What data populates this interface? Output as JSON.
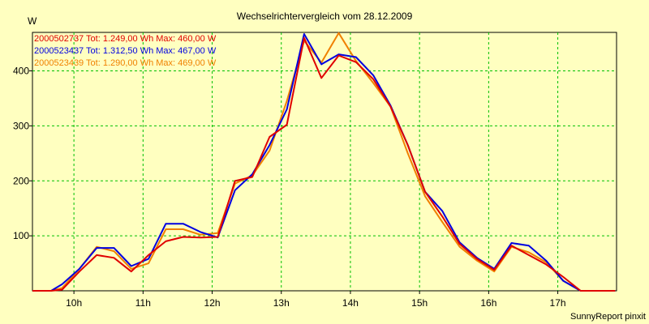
{
  "chart_data": {
    "type": "line",
    "title": "Wechselrichtervergleich vom 28.12.2009",
    "ylabel": "W",
    "xlabel": "",
    "credit": "SunnyReport pinxit",
    "xlim": [
      9.4,
      17.85
    ],
    "ylim": [
      0,
      470
    ],
    "grid": true,
    "legend_position": "top-left",
    "x_ticks": [
      {
        "value": 10,
        "label": "10h"
      },
      {
        "value": 11,
        "label": "11h"
      },
      {
        "value": 12,
        "label": "12h"
      },
      {
        "value": 13,
        "label": "13h"
      },
      {
        "value": 14,
        "label": "14h"
      },
      {
        "value": 15,
        "label": "15h"
      },
      {
        "value": 16,
        "label": "16h"
      },
      {
        "value": 17,
        "label": "17h"
      }
    ],
    "y_ticks": [
      {
        "value": 100,
        "label": "100"
      },
      {
        "value": 200,
        "label": "200"
      },
      {
        "value": 300,
        "label": "300"
      },
      {
        "value": 400,
        "label": "400"
      }
    ],
    "series": [
      {
        "name": "2000502737 Tot: 1.249,00 Wh Max: 460,00 W",
        "color": "#e00000",
        "x": [
          9.4,
          9.67,
          9.83,
          10.08,
          10.33,
          10.58,
          10.83,
          11.08,
          11.33,
          11.58,
          11.83,
          12.08,
          12.33,
          12.58,
          12.83,
          13.08,
          13.33,
          13.58,
          13.83,
          14.08,
          14.33,
          14.58,
          14.83,
          15.08,
          15.33,
          15.58,
          15.83,
          16.08,
          16.33,
          16.58,
          16.83,
          17.08,
          17.33,
          17.83
        ],
        "y": [
          0,
          0,
          2,
          35,
          65,
          60,
          35,
          65,
          90,
          98,
          97,
          98,
          200,
          207,
          280,
          302,
          460,
          387,
          428,
          416,
          385,
          335,
          265,
          180,
          135,
          85,
          58,
          38,
          82,
          65,
          48,
          25,
          0,
          0
        ]
      },
      {
        "name": "2000523437 Tot: 1.312,50 Wh Max: 467,00 W",
        "color": "#0000e0",
        "x": [
          9.4,
          9.67,
          9.83,
          10.08,
          10.33,
          10.58,
          10.83,
          11.08,
          11.33,
          11.58,
          11.83,
          12.08,
          12.33,
          12.58,
          12.83,
          13.08,
          13.33,
          13.58,
          13.83,
          14.08,
          14.33,
          14.58,
          14.83,
          15.08,
          15.33,
          15.58,
          15.83,
          16.08,
          16.33,
          16.58,
          16.83,
          17.08,
          17.33,
          17.83
        ],
        "y": [
          0,
          0,
          12,
          40,
          78,
          78,
          45,
          58,
          122,
          122,
          107,
          97,
          183,
          212,
          265,
          330,
          467,
          412,
          430,
          425,
          392,
          337,
          265,
          180,
          145,
          88,
          60,
          40,
          87,
          82,
          55,
          18,
          0,
          0
        ]
      },
      {
        "name": "2000523439 Tot: 1.290,00 Wh Max: 469,00 W",
        "color": "#f08000",
        "x": [
          9.4,
          9.67,
          9.83,
          10.08,
          10.33,
          10.58,
          10.83,
          11.08,
          11.33,
          11.58,
          11.83,
          12.08,
          12.33,
          12.58,
          12.83,
          13.08,
          13.33,
          13.58,
          13.83,
          14.08,
          14.33,
          14.58,
          14.83,
          15.08,
          15.33,
          15.58,
          15.83,
          16.08,
          16.33,
          16.58,
          16.83,
          17.08,
          17.33,
          17.83
        ],
        "y": [
          0,
          0,
          5,
          40,
          80,
          72,
          40,
          50,
          112,
          112,
          102,
          105,
          195,
          210,
          255,
          345,
          455,
          415,
          469,
          418,
          378,
          335,
          250,
          172,
          125,
          80,
          55,
          35,
          80,
          70,
          52,
          18,
          0,
          0
        ]
      }
    ]
  }
}
